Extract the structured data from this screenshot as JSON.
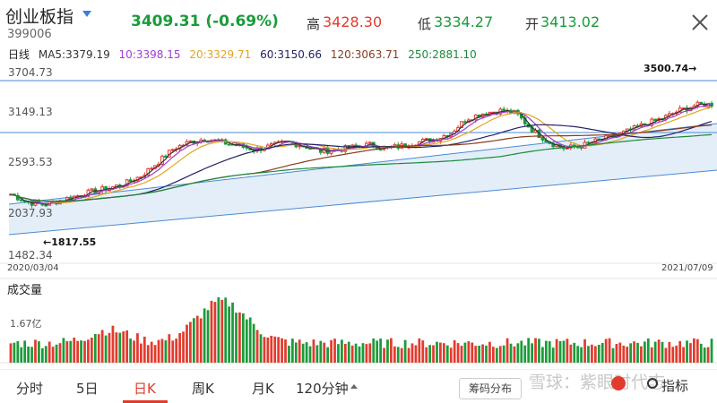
{
  "header": {
    "title": "创业板指",
    "code": "399006",
    "last_quote": "3409.31 (-0.69%)",
    "high_label": "高",
    "high_value": "3428.30",
    "low_label": "低",
    "low_value": "3334.27",
    "open_label": "开",
    "open_value": "3413.02",
    "up_color": "#e23b2e",
    "down_color": "#1a9b3a"
  },
  "ma_legend": {
    "period": "日线",
    "ma5": "MA5:3379.19",
    "ma10": "10:3398.15",
    "ma20": "20:3329.71",
    "ma60": "60:3150.66",
    "ma120": "120:3063.71",
    "ma250": "250:2881.10",
    "colors": {
      "ma5": "#333333",
      "ma10": "#a23bd6",
      "ma20": "#e3a51d",
      "ma60": "#222266",
      "ma120": "#8a3a1e",
      "ma250": "#1a8a3a"
    }
  },
  "y_axis": {
    "ticks": [
      "3704.73",
      "3149.13",
      "2593.53",
      "2037.93",
      "1482.34"
    ]
  },
  "x_axis": {
    "start": "2020/03/04",
    "end": "2021/07/09"
  },
  "annotations": {
    "max": "3500.74→",
    "min": "←1817.55"
  },
  "volume": {
    "title": "成交量",
    "max_label": "1.67亿"
  },
  "chart_data": {
    "type": "line",
    "ylim": [
      1482.34,
      3704.73
    ],
    "x_range": [
      "2020/03/04",
      "2021/07/09"
    ],
    "series": [
      {
        "name": "MA5",
        "values": [
          2020,
          1900,
          1860,
          1920,
          1990,
          2060,
          2110,
          2180,
          2300,
          2500,
          2720,
          2820,
          2870,
          2810,
          2760,
          2700,
          2760,
          2820,
          2760,
          2680,
          2700,
          2740,
          2780,
          2720,
          2760,
          2820,
          2860,
          2960,
          3180,
          3260,
          3300,
          3260,
          3000,
          2820,
          2720,
          2760,
          2840,
          2900,
          3000,
          3100,
          3180,
          3300,
          3380,
          3400
        ]
      }
    ],
    "reference_lines": [
      3500.74,
      2960
    ]
  },
  "tabs": {
    "items": [
      "分时",
      "5日",
      "日K",
      "周K",
      "月K",
      "120分钟"
    ],
    "active": "日K",
    "chip": "筹码分布",
    "watermark": "雪球：紫眼时代志",
    "indicator": "指标"
  }
}
